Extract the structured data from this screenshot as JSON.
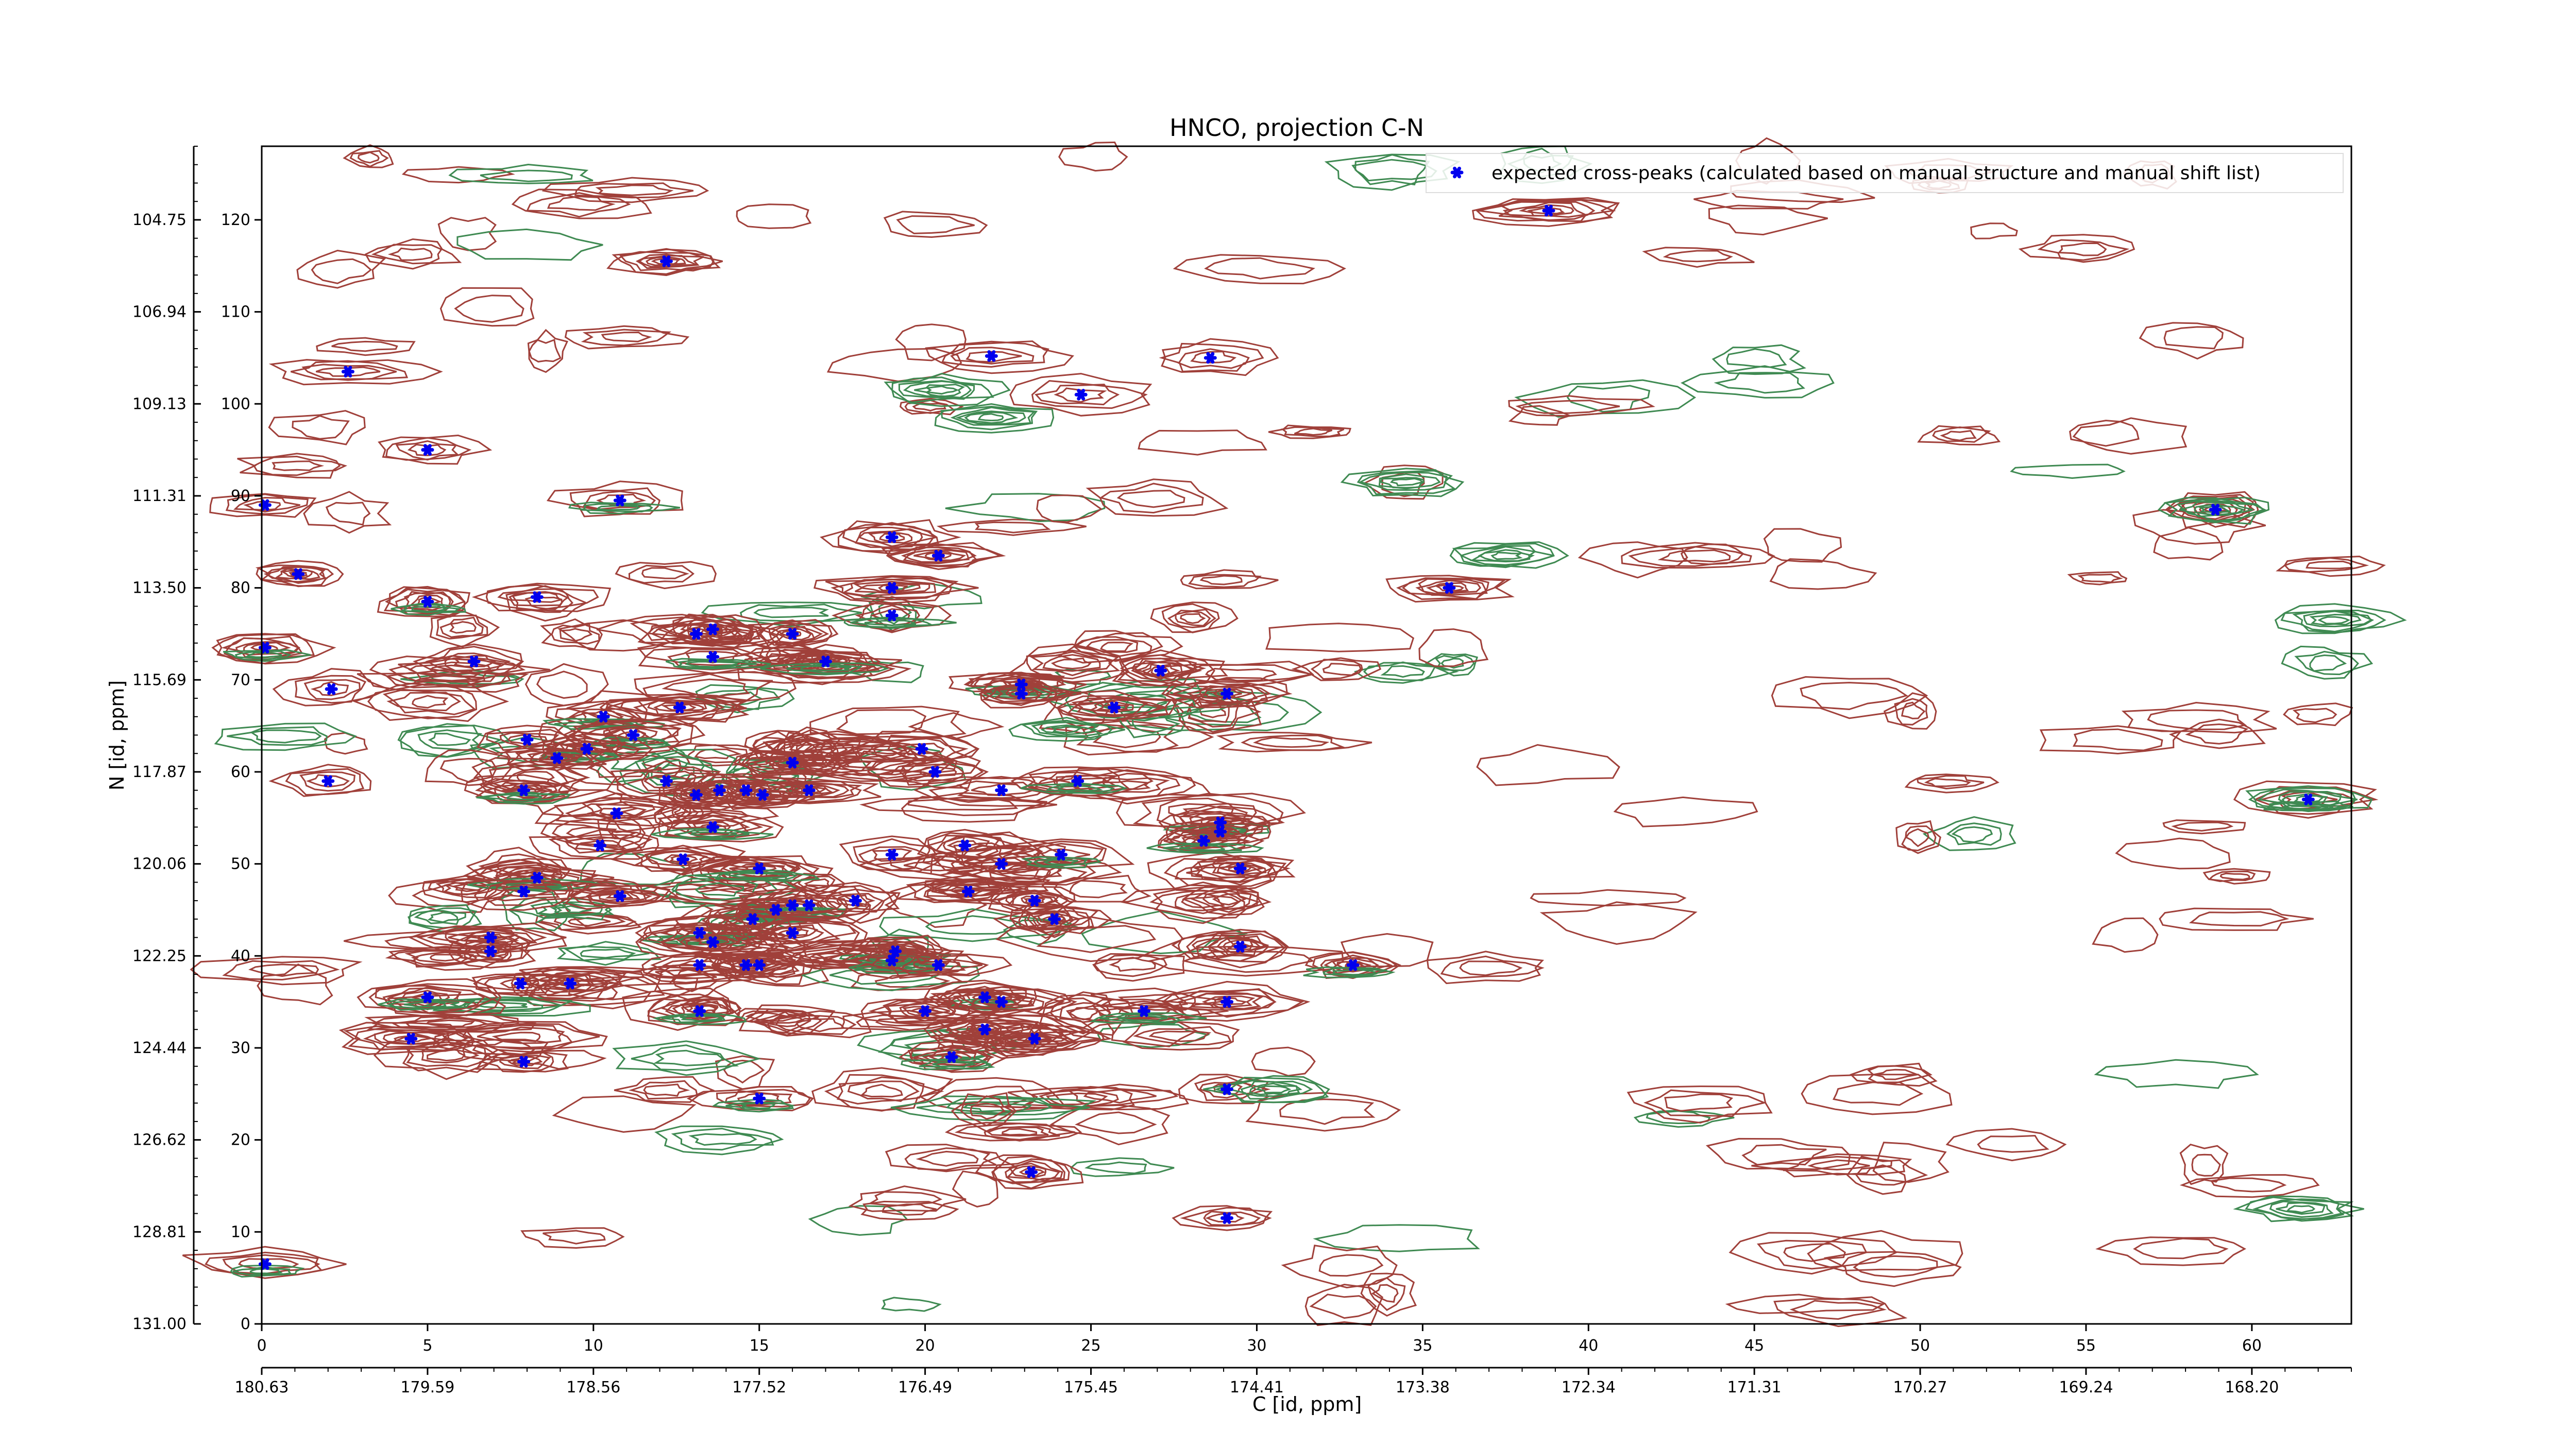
{
  "chart_data": {
    "type": "scatter",
    "title": "HNCO, projection C-N",
    "xlabel": "C [id, ppm]",
    "ylabel": "N [id, ppm]",
    "xlim": [
      0,
      63
    ],
    "ylim": [
      0,
      128
    ],
    "x_ticks": [
      0,
      5,
      10,
      15,
      20,
      25,
      30,
      35,
      40,
      45,
      50,
      55,
      60
    ],
    "y_ticks": [
      0,
      10,
      20,
      30,
      40,
      50,
      60,
      70,
      80,
      90,
      100,
      110,
      120
    ],
    "x_ppm_labels": [
      "180.63",
      "179.59",
      "178.56",
      "177.52",
      "176.49",
      "175.45",
      "174.41",
      "173.38",
      "172.34",
      "171.31",
      "170.27",
      "169.24",
      "168.20"
    ],
    "y_ppm_labels": [
      "131.00",
      "128.81",
      "126.62",
      "124.44",
      "122.25",
      "120.06",
      "117.87",
      "115.69",
      "113.50",
      "111.31",
      "109.13",
      "106.94",
      "104.75"
    ],
    "legend_position": "top-right",
    "grid": false,
    "colors": {
      "positive_contour": "#a0403a",
      "negative_contour": "#3f8a52",
      "marker": "#0000ee"
    },
    "series": [
      {
        "name": "expected cross-peaks (calculated based on manual structure and manual shift list)",
        "color": "#0000ee",
        "marker": "x",
        "points": [
          [
            38.8,
            121
          ],
          [
            12.2,
            115.5
          ],
          [
            22,
            105.2
          ],
          [
            28.6,
            105
          ],
          [
            24.7,
            101
          ],
          [
            2.6,
            103.5
          ],
          [
            5,
            95
          ],
          [
            0.1,
            89
          ],
          [
            10.8,
            89.5
          ],
          [
            1.1,
            81.5
          ],
          [
            5,
            78.5
          ],
          [
            0.1,
            73.5
          ],
          [
            19,
            85.5
          ],
          [
            20.4,
            83.5
          ],
          [
            19,
            80
          ],
          [
            19,
            77
          ],
          [
            8.3,
            79
          ],
          [
            13.1,
            75
          ],
          [
            13.6,
            75.5
          ],
          [
            16,
            75
          ],
          [
            13.6,
            72.5
          ],
          [
            6.4,
            72
          ],
          [
            17,
            72
          ],
          [
            2.1,
            69
          ],
          [
            22.9,
            69.5
          ],
          [
            22.9,
            68.5
          ],
          [
            29.1,
            68.5
          ],
          [
            25.7,
            67
          ],
          [
            27.1,
            71
          ],
          [
            12.6,
            67
          ],
          [
            10.3,
            66
          ],
          [
            11.2,
            64
          ],
          [
            8,
            63.5
          ],
          [
            9.8,
            62.5
          ],
          [
            8.9,
            61.5
          ],
          [
            16,
            61
          ],
          [
            19.9,
            62.5
          ],
          [
            20.3,
            60
          ],
          [
            2,
            59
          ],
          [
            12.2,
            59
          ],
          [
            7.9,
            58
          ],
          [
            13.8,
            58
          ],
          [
            14.6,
            58
          ],
          [
            15.1,
            57.5
          ],
          [
            13.1,
            57.5
          ],
          [
            16.5,
            58
          ],
          [
            22.3,
            58
          ],
          [
            24.6,
            59
          ],
          [
            10.7,
            55.5
          ],
          [
            13.6,
            54
          ],
          [
            28.9,
            54.5
          ],
          [
            28.9,
            53.5
          ],
          [
            28.4,
            52.5
          ],
          [
            10.2,
            52
          ],
          [
            19,
            51
          ],
          [
            21.2,
            52
          ],
          [
            22.3,
            50
          ],
          [
            24.1,
            51
          ],
          [
            12.7,
            50.5
          ],
          [
            15,
            49.5
          ],
          [
            29.5,
            49.5
          ],
          [
            8.3,
            48.5
          ],
          [
            7.9,
            47
          ],
          [
            10.8,
            46.5
          ],
          [
            17.9,
            46
          ],
          [
            21.3,
            47
          ],
          [
            23.3,
            46
          ],
          [
            15.5,
            45
          ],
          [
            16,
            45.5
          ],
          [
            16.5,
            45.5
          ],
          [
            14.8,
            44
          ],
          [
            23.9,
            44
          ],
          [
            16,
            42.5
          ],
          [
            13.2,
            42.5
          ],
          [
            13.6,
            41.5
          ],
          [
            6.9,
            42
          ],
          [
            6.9,
            40.5
          ],
          [
            19.1,
            40.5
          ],
          [
            29.5,
            41
          ],
          [
            13.2,
            39
          ],
          [
            14.6,
            39
          ],
          [
            15,
            39
          ],
          [
            19,
            39.5
          ],
          [
            20.4,
            39
          ],
          [
            32.9,
            39
          ],
          [
            7.8,
            37
          ],
          [
            9.3,
            37
          ],
          [
            5,
            35.5
          ],
          [
            21.8,
            35.5
          ],
          [
            22.3,
            35
          ],
          [
            29.1,
            35
          ],
          [
            13.2,
            34
          ],
          [
            20,
            34
          ],
          [
            26.6,
            34
          ],
          [
            21.8,
            32
          ],
          [
            4.5,
            31
          ],
          [
            23.3,
            31
          ],
          [
            7.9,
            28.5
          ],
          [
            20.8,
            29
          ],
          [
            15,
            24.5
          ],
          [
            29.1,
            25.5
          ],
          [
            23.2,
            16.5
          ],
          [
            29.1,
            11.5
          ],
          [
            0.1,
            6.5
          ],
          [
            35.8,
            80
          ],
          [
            58.9,
            88.5
          ],
          [
            61.7,
            57
          ]
        ]
      }
    ]
  }
}
